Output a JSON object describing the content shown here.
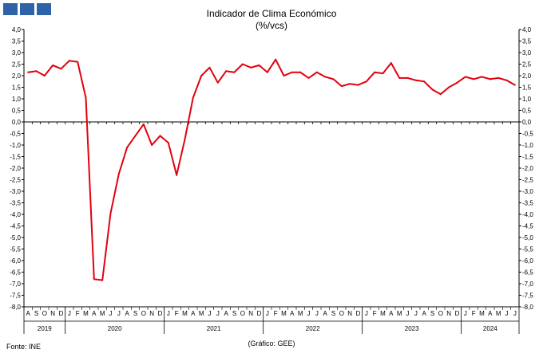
{
  "header": {
    "logo_icon": "ine-logo-icon",
    "logo_color": "#2f63a8"
  },
  "chart_data": {
    "type": "line",
    "title": "Indicador de Clima Económico",
    "subtitle": "(%/vcs)",
    "ylim": [
      -8.0,
      4.0
    ],
    "yticks": [
      "4,0",
      "3,5",
      "3,0",
      "2,5",
      "2,0",
      "1,5",
      "1,0",
      "0,5",
      "0,0",
      "-0,5",
      "-1,0",
      "-1,5",
      "-2,0",
      "-2,5",
      "-3,0",
      "-3,5",
      "-4,0",
      "-4,5",
      "-5,0",
      "-5,5",
      "-6,0",
      "-6,5",
      "-7,0",
      "-7,5",
      "-8,0"
    ],
    "month_labels": [
      "A",
      "S",
      "O",
      "N",
      "D",
      "J",
      "F",
      "M",
      "A",
      "M",
      "J",
      "J",
      "A",
      "S",
      "O",
      "N",
      "D",
      "J",
      "F",
      "M",
      "A",
      "M",
      "J",
      "J",
      "A",
      "S",
      "O",
      "N",
      "D",
      "J",
      "F",
      "M",
      "A",
      "M",
      "J",
      "J",
      "A",
      "S",
      "O",
      "N",
      "D",
      "J",
      "F",
      "M",
      "A",
      "M",
      "J",
      "J",
      "A",
      "S",
      "O",
      "N",
      "D",
      "J",
      "F",
      "M",
      "A",
      "M",
      "J",
      "J"
    ],
    "years": [
      {
        "label": "2019",
        "start": 0,
        "count": 5
      },
      {
        "label": "2020",
        "start": 5,
        "count": 12
      },
      {
        "label": "2021",
        "start": 17,
        "count": 12
      },
      {
        "label": "2022",
        "start": 29,
        "count": 12
      },
      {
        "label": "2023",
        "start": 41,
        "count": 12
      },
      {
        "label": "2024",
        "start": 53,
        "count": 7
      }
    ],
    "grid": false,
    "series": [
      {
        "color": "#e3000f",
        "values": [
          2.15,
          2.2,
          2.0,
          2.45,
          2.3,
          2.65,
          2.6,
          1.05,
          -6.8,
          -6.85,
          -3.95,
          -2.25,
          -1.1,
          -0.6,
          -0.1,
          -1.0,
          -0.6,
          -0.9,
          -2.3,
          -0.75,
          1.05,
          2.0,
          2.35,
          1.7,
          2.2,
          2.15,
          2.5,
          2.35,
          2.45,
          2.15,
          2.7,
          2.0,
          2.15,
          2.15,
          1.9,
          2.15,
          1.95,
          1.85,
          1.55,
          1.65,
          1.6,
          1.75,
          2.15,
          2.1,
          2.55,
          1.9,
          1.9,
          1.8,
          1.75,
          1.4,
          1.2,
          1.5,
          1.7,
          1.95,
          1.85,
          1.95,
          1.85,
          1.9,
          1.8,
          1.6
        ]
      }
    ]
  },
  "footer": {
    "source": "Fonte: INE",
    "credit": "(Gráfico: GEE)"
  }
}
